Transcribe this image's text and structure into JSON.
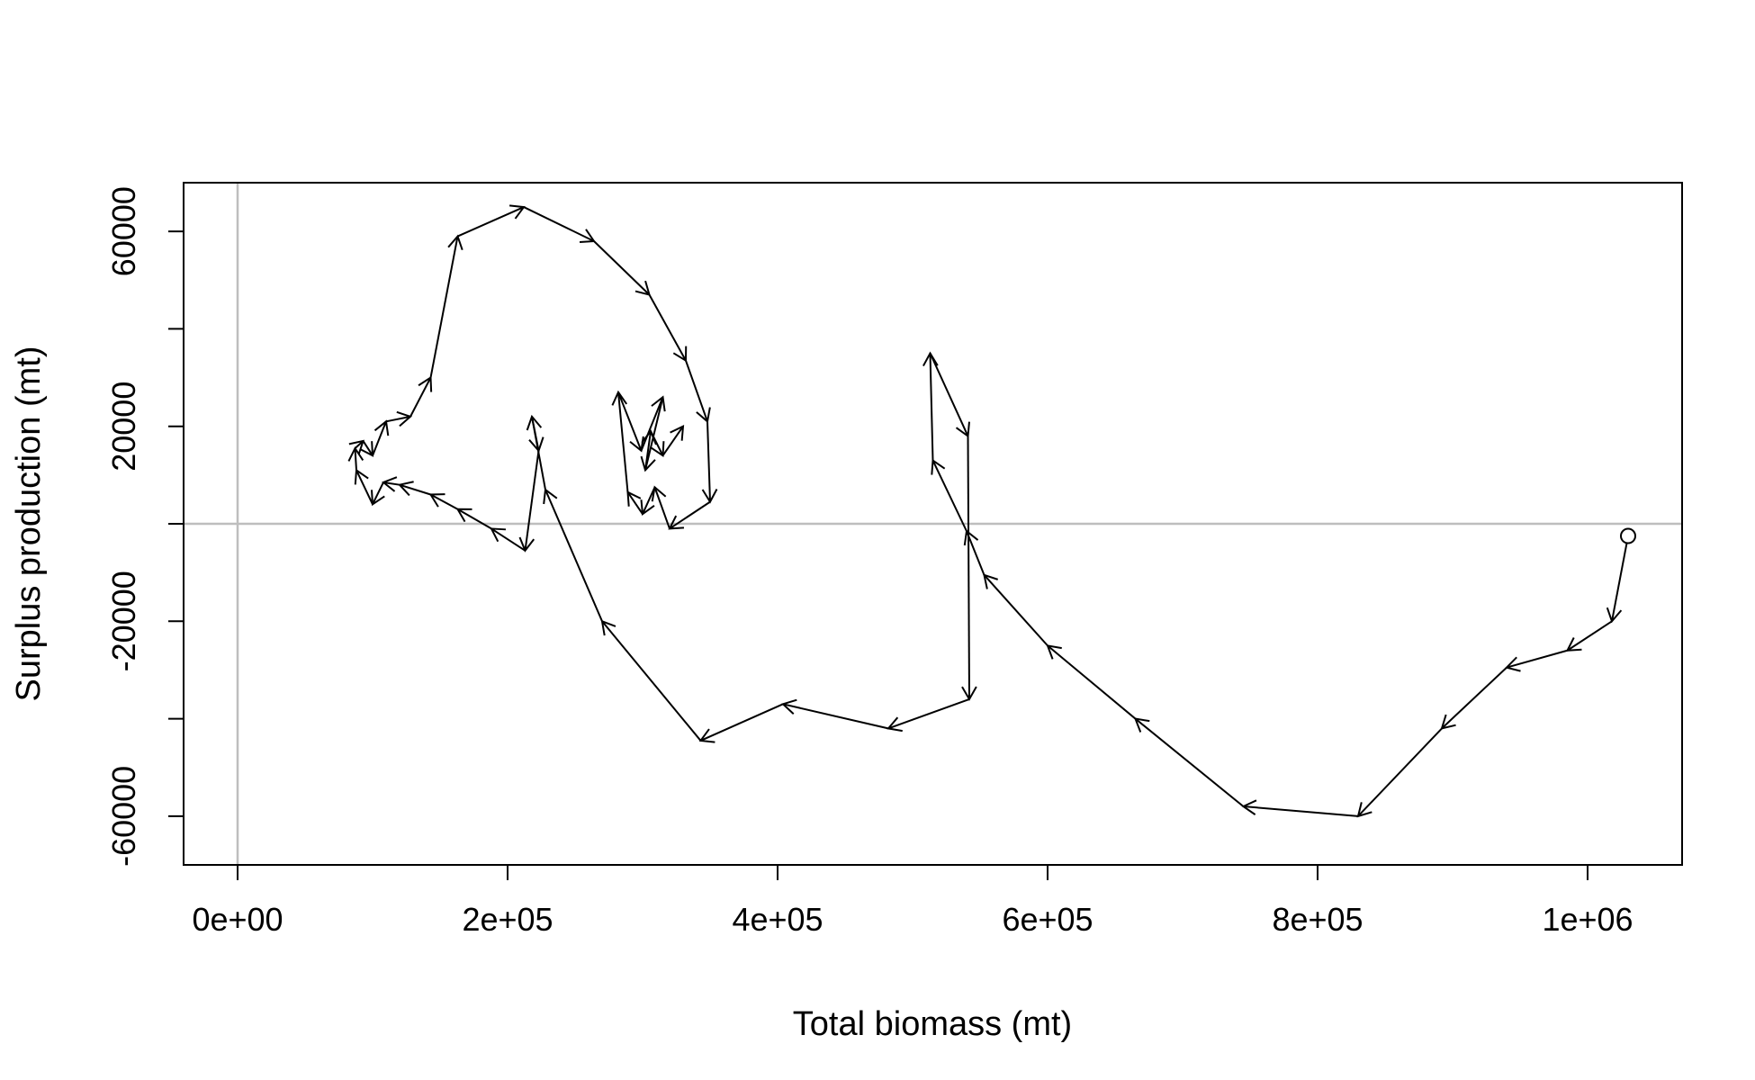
{
  "chart_data": {
    "type": "line",
    "subtype": "phase-plot-with-arrows",
    "xlabel": "Total biomass (mt)",
    "ylabel": "Surplus production (mt)",
    "xlim": [
      -40000,
      1070000
    ],
    "ylim": [
      -70000,
      70000
    ],
    "x_ticks": [
      {
        "value": 0,
        "label": "0e+00"
      },
      {
        "value": 200000,
        "label": "2e+05"
      },
      {
        "value": 400000,
        "label": "4e+05"
      },
      {
        "value": 600000,
        "label": "6e+05"
      },
      {
        "value": 800000,
        "label": "8e+05"
      },
      {
        "value": 1000000,
        "label": "1e+06"
      }
    ],
    "y_ticks": [
      {
        "value": -60000,
        "label": "-60000"
      },
      {
        "value": -20000,
        "label": "-20000"
      },
      {
        "value": 20000,
        "label": "20000"
      },
      {
        "value": 60000,
        "label": "60000"
      }
    ],
    "y_minor_ticks": [
      -40000,
      0,
      40000
    ],
    "reference_lines": {
      "x": 0,
      "y": 0,
      "color": "#bebebe"
    },
    "start_marker": "open-circle",
    "line_color": "#000000",
    "points": [
      [
        1030000,
        -2500
      ],
      [
        1018000,
        -20000
      ],
      [
        985000,
        -26000
      ],
      [
        940000,
        -29500
      ],
      [
        892000,
        -42000
      ],
      [
        830000,
        -60000
      ],
      [
        745000,
        -58000
      ],
      [
        665000,
        -40000
      ],
      [
        600000,
        -25000
      ],
      [
        553000,
        -10500
      ],
      [
        540000,
        -1500
      ],
      [
        515000,
        13000
      ],
      [
        513000,
        35000
      ],
      [
        541000,
        18000
      ],
      [
        542000,
        -36000
      ],
      [
        482000,
        -42000
      ],
      [
        404000,
        -37000
      ],
      [
        343000,
        -44500
      ],
      [
        270000,
        -20000
      ],
      [
        228000,
        7000
      ],
      [
        218000,
        22000
      ],
      [
        223000,
        15000
      ],
      [
        213000,
        -5500
      ],
      [
        188000,
        -1000
      ],
      [
        163000,
        3000
      ],
      [
        143000,
        6000
      ],
      [
        120000,
        8000
      ],
      [
        108000,
        8500
      ],
      [
        100000,
        4000
      ],
      [
        88000,
        11000
      ],
      [
        87000,
        15500
      ],
      [
        93000,
        17000
      ],
      [
        100000,
        14000
      ],
      [
        110000,
        21000
      ],
      [
        128000,
        22000
      ],
      [
        143000,
        30000
      ],
      [
        163000,
        59000
      ],
      [
        212000,
        65000
      ],
      [
        264000,
        58000
      ],
      [
        305000,
        47000
      ],
      [
        332000,
        33500
      ],
      [
        348000,
        21000
      ],
      [
        350000,
        4500
      ],
      [
        320000,
        -1000
      ],
      [
        309000,
        7500
      ],
      [
        300000,
        2000
      ],
      [
        289000,
        6500
      ],
      [
        282000,
        27000
      ],
      [
        299000,
        15000
      ],
      [
        315000,
        26000
      ],
      [
        302000,
        11000
      ],
      [
        306000,
        19000
      ],
      [
        315000,
        14000
      ],
      [
        330000,
        20000
      ]
    ]
  }
}
